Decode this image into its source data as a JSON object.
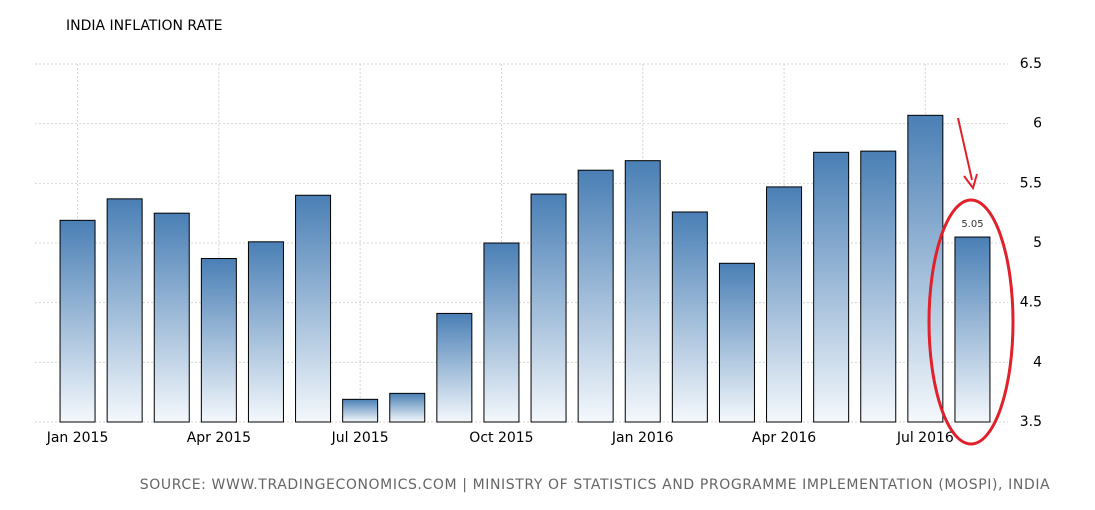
{
  "chart_data": {
    "type": "bar",
    "title": "INDIA INFLATION RATE",
    "source": "SOURCE: WWW.TRADINGECONOMICS.COM | MINISTRY OF STATISTICS AND PROGRAMME IMPLEMENTATION (MOSPI), INDIA",
    "categories": [
      "Jan 2015",
      null,
      null,
      "Apr 2015",
      null,
      null,
      "Jul 2015",
      null,
      null,
      "Oct 2015",
      null,
      null,
      "Jan 2016",
      null,
      null,
      "Apr 2016",
      null,
      null,
      "Jul 2016",
      null
    ],
    "values": [
      5.19,
      5.37,
      5.25,
      4.87,
      5.01,
      5.4,
      3.69,
      3.74,
      4.41,
      5.0,
      5.41,
      5.61,
      5.69,
      5.26,
      4.83,
      5.47,
      5.76,
      5.77,
      6.07,
      5.05
    ],
    "value_labels": [
      null,
      null,
      null,
      null,
      null,
      null,
      null,
      null,
      null,
      null,
      null,
      null,
      null,
      null,
      null,
      null,
      null,
      null,
      null,
      "5.05"
    ],
    "color": "#4a7fb5",
    "ylim": [
      3.5,
      6.5
    ],
    "yticks": [
      3.5,
      4,
      4.5,
      5,
      5.5,
      6,
      6.5
    ],
    "grid": true
  }
}
